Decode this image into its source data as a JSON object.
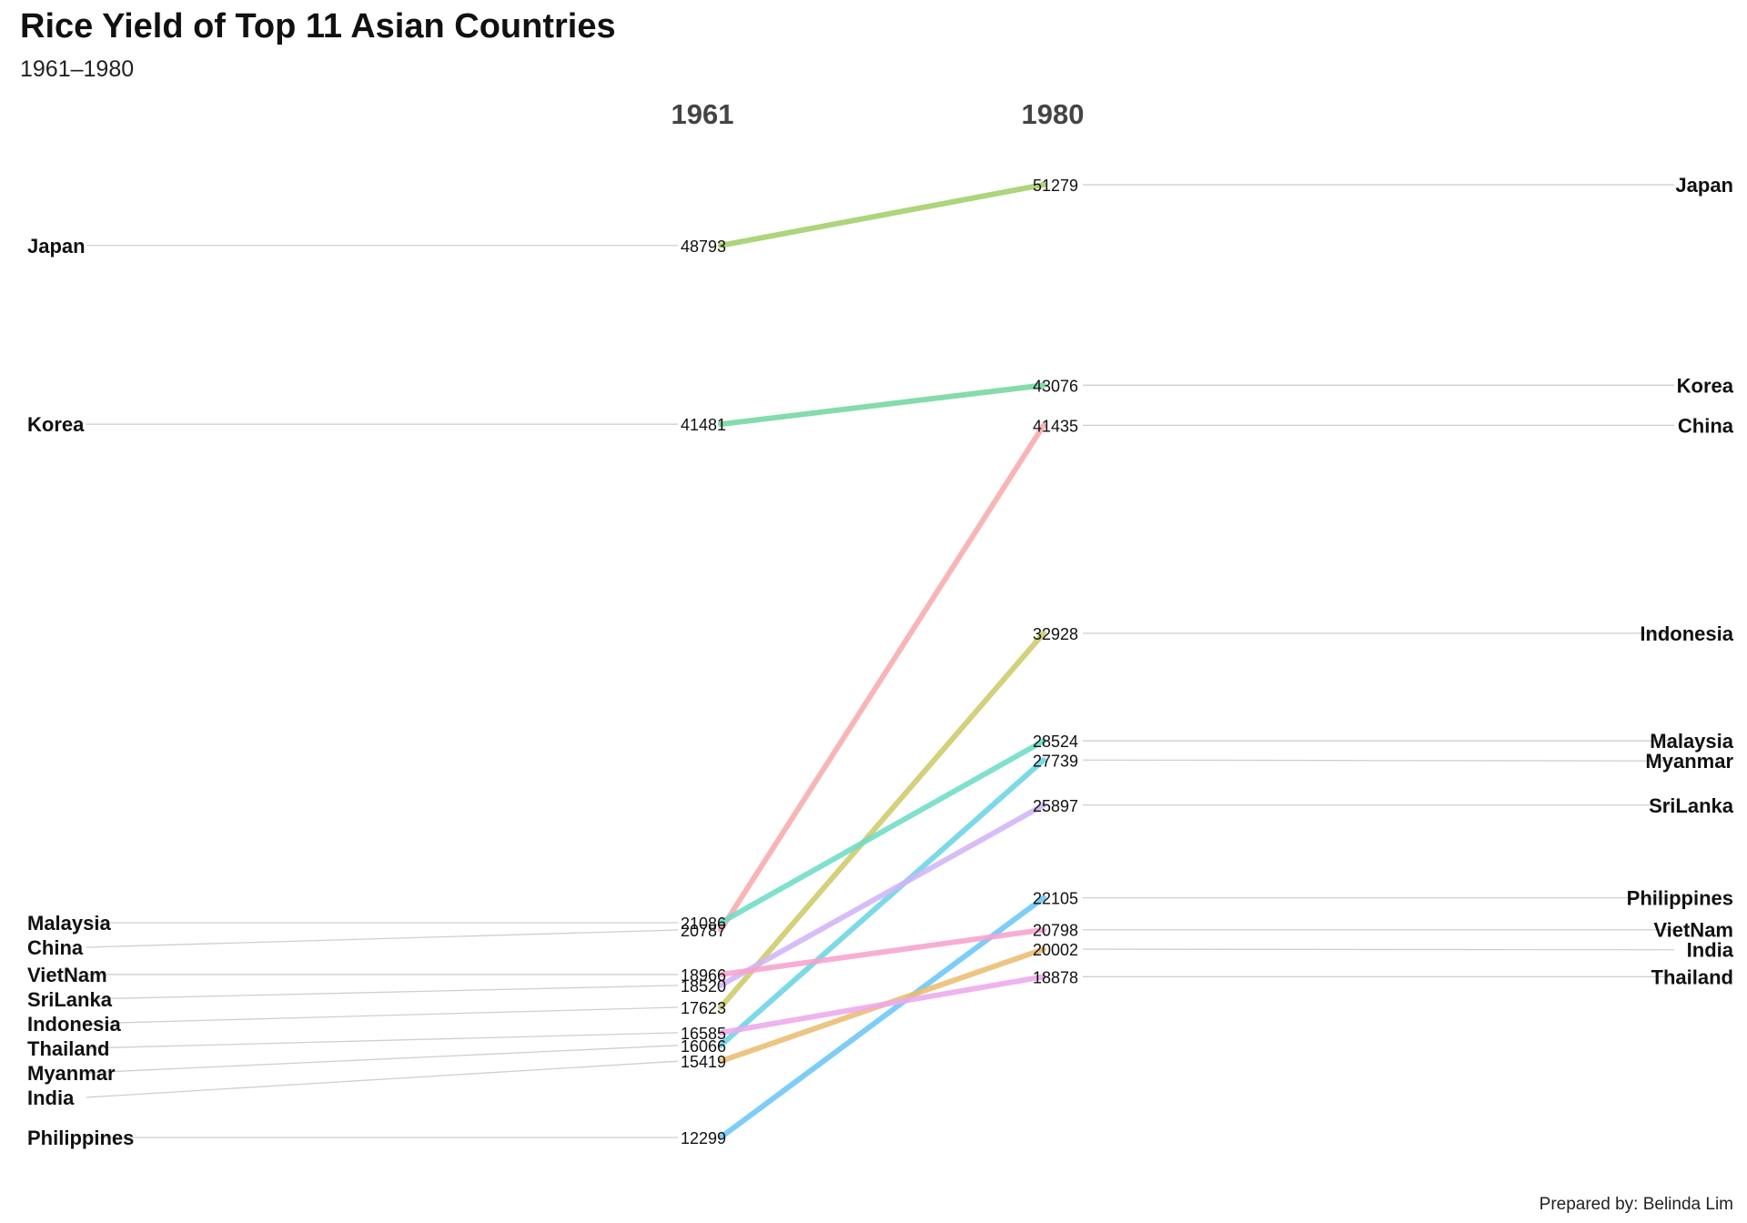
{
  "chart_data": {
    "type": "line",
    "title": "Rice Yield of Top 11 Asian Countries",
    "subtitle": "1961–1980",
    "caption": "Prepared by: Belinda Lim",
    "x": [
      "1961",
      "1980"
    ],
    "series": [
      {
        "name": "Japan",
        "values": [
          48793,
          51279
        ],
        "color": "#a3cf6a"
      },
      {
        "name": "Korea",
        "values": [
          41481,
          43076
        ],
        "color": "#72d89e"
      },
      {
        "name": "China",
        "values": [
          20787,
          41435
        ],
        "color": "#f6adab"
      },
      {
        "name": "Indonesia",
        "values": [
          17623,
          32928
        ],
        "color": "#cfca6a"
      },
      {
        "name": "Malaysia",
        "values": [
          21086,
          28524
        ],
        "color": "#6ddcc7"
      },
      {
        "name": "Myanmar",
        "values": [
          16066,
          27739
        ],
        "color": "#6ad4e4"
      },
      {
        "name": "SriLanka",
        "values": [
          18520,
          25897
        ],
        "color": "#d2b5f8"
      },
      {
        "name": "Philippines",
        "values": [
          12299,
          22105
        ],
        "color": "#6ac7f7"
      },
      {
        "name": "VietNam",
        "values": [
          18966,
          20798
        ],
        "color": "#f6a3cf"
      },
      {
        "name": "India",
        "values": [
          15419,
          20002
        ],
        "color": "#ebbd70"
      },
      {
        "name": "Thailand",
        "values": [
          16585,
          18878
        ],
        "color": "#eda9ec"
      }
    ],
    "value_labels": {
      "1961": [
        "48793",
        "41481",
        "21086",
        "20787",
        "18966",
        "18520",
        "17623",
        "16585",
        "16066",
        "15419",
        "12299"
      ],
      "1980": [
        "51279",
        "43076",
        "41435",
        "32928",
        "28524",
        "27739",
        "25897",
        "22105",
        "20798",
        "20002",
        "18878"
      ]
    },
    "ylim": [
      12299,
      51279
    ],
    "grid": false,
    "legend": "none"
  }
}
